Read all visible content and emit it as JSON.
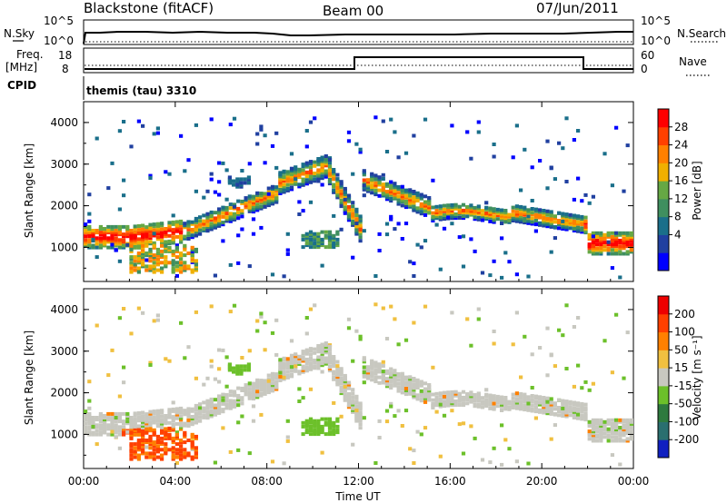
{
  "header": {
    "station": "Blackstone (fitACF)",
    "beam": "Beam 00",
    "date": "07/Jun/2011"
  },
  "top_panels": {
    "nsky_label": "N.Sky",
    "nsky_ticks": [
      "10^5",
      "10^0"
    ],
    "nsearch_label": "N.Search",
    "freq_label_1": "Freq.",
    "freq_label_2": "[MHz]",
    "freq_ticks": [
      "18",
      "8"
    ],
    "nave_label": "Nave",
    "nave_ticks": [
      "60",
      "0"
    ],
    "cpid_label": "CPID",
    "cpid_text": "themis (tau) 3310"
  },
  "chart_data": [
    {
      "type": "heatmap",
      "title": "",
      "ylabel": "Slant Range [km]",
      "xlabel": "",
      "ylim": [
        180,
        4500
      ],
      "yticks": [
        "4000",
        "3000",
        "2000",
        "1000"
      ],
      "colorbar_label": "Power [dB]",
      "colorbar_ticks": [
        "28",
        "24",
        "20",
        "16",
        "12",
        "8",
        "4"
      ],
      "colorbar_colors": [
        "#0000ff",
        "#2040a0",
        "#1a6f8a",
        "#3f8f5f",
        "#66a844",
        "#f0b000",
        "#ff8000",
        "#ff4000",
        "#ff0000"
      ]
    },
    {
      "type": "heatmap",
      "title": "",
      "ylabel": "Slant Range [km]",
      "xlabel": "Time UT",
      "ylim": [
        180,
        4500
      ],
      "yticks": [
        "4000",
        "3000",
        "2000",
        "1000"
      ],
      "xticks": [
        "00:00",
        "04:00",
        "08:00",
        "12:00",
        "16:00",
        "20:00",
        "00:00"
      ],
      "colorbar_label": "Velocity [m s⁻¹]",
      "colorbar_ticks": [
        "200",
        "100",
        "50",
        "15",
        "-15",
        "-50",
        "-100",
        "-200"
      ],
      "colorbar_colors": [
        "#1020c0",
        "#2a6f6f",
        "#2e7a3e",
        "#6cc02a",
        "#c8c8c0",
        "#f0c040",
        "#ff8000",
        "#ff4000",
        "#ee0000"
      ]
    }
  ]
}
